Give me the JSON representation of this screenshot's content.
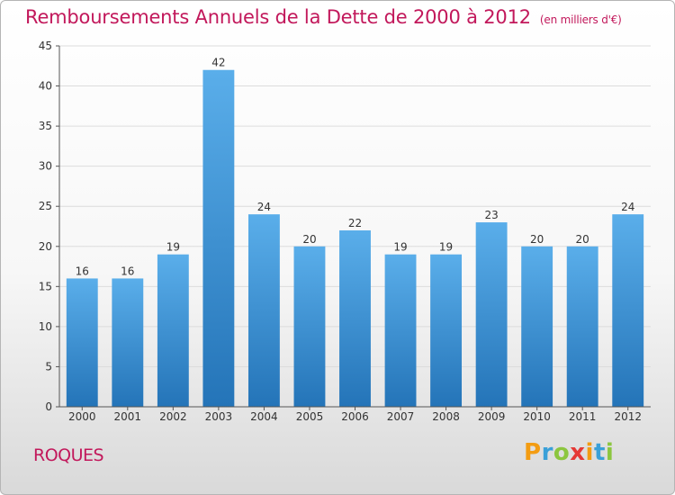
{
  "title": "Remboursements Annuels de la Dette de 2000 à 2012",
  "unit": "(en milliers d'€)",
  "commune": "ROQUES",
  "logo": {
    "letters": [
      "P",
      "r",
      "o",
      "x",
      "i",
      "t",
      "i"
    ],
    "colors": [
      "#f39c12",
      "#3aa0d8",
      "#8cc63f",
      "#e53935",
      "#f39c12",
      "#3aa0d8",
      "#8cc63f"
    ]
  },
  "chart_data": {
    "type": "bar",
    "categories": [
      "2000",
      "2001",
      "2002",
      "2003",
      "2004",
      "2005",
      "2006",
      "2007",
      "2008",
      "2009",
      "2010",
      "2011",
      "2012"
    ],
    "values": [
      16,
      16,
      19,
      42,
      24,
      20,
      22,
      19,
      19,
      23,
      20,
      20,
      24
    ],
    "ylim": [
      0,
      45
    ],
    "yticks": [
      0,
      5,
      10,
      15,
      20,
      25,
      30,
      35,
      40,
      45
    ],
    "grid": true,
    "bar_color": "#4a9fe0",
    "title_color": "#c2185b"
  }
}
